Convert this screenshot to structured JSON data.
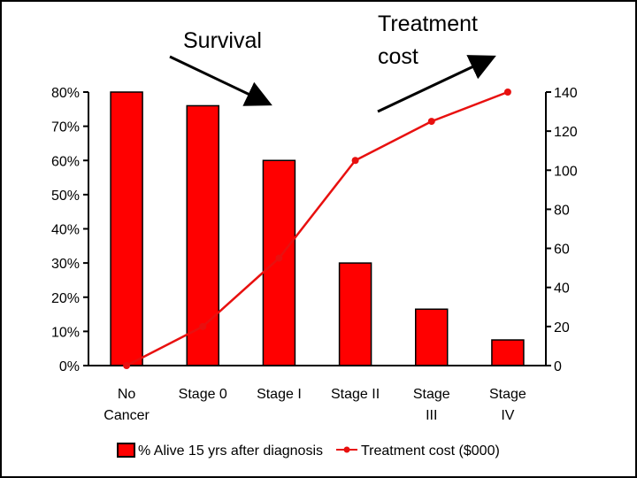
{
  "chart_data": {
    "type": "bar",
    "categories": [
      [
        "No",
        "Cancer"
      ],
      [
        "Stage 0"
      ],
      [
        "Stage I"
      ],
      [
        "Stage II"
      ],
      [
        "Stage",
        "III"
      ],
      [
        "Stage",
        "IV"
      ]
    ],
    "series": [
      {
        "name": "% Alive 15 yrs after diagnosis",
        "kind": "bar",
        "axis": "left",
        "values": [
          80,
          76,
          60,
          30,
          16.5,
          7.5
        ]
      },
      {
        "name": "Treatment cost ($000)",
        "kind": "line",
        "axis": "right",
        "values": [
          0,
          20,
          55,
          105,
          125,
          140
        ]
      }
    ],
    "left_axis": {
      "ylim": [
        0,
        80
      ],
      "ticks": [
        "0%",
        "10%",
        "20%",
        "30%",
        "40%",
        "50%",
        "60%",
        "70%",
        "80%"
      ]
    },
    "right_axis": {
      "ylim": [
        0,
        140
      ],
      "ticks": [
        "0",
        "20",
        "40",
        "60",
        "80",
        "100",
        "120",
        "140"
      ]
    },
    "annotations": {
      "survival": "Survival",
      "cost_line1": "Treatment",
      "cost_line2": "cost"
    },
    "legend_position": "bottom",
    "grid": false,
    "colors": {
      "bar": "#ff0000",
      "line": "#e8100f",
      "axis": "#000000"
    }
  }
}
